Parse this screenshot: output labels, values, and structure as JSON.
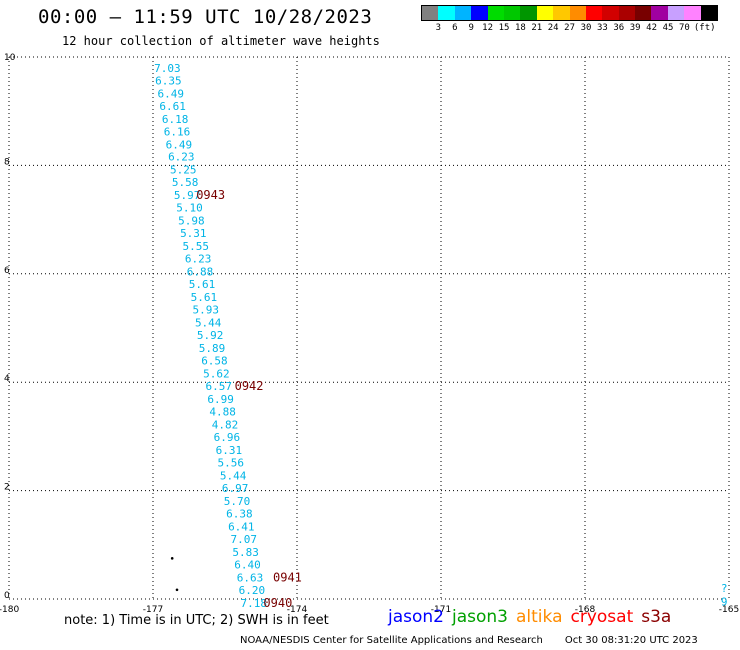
{
  "header": {
    "title": "00:00 – 11:59 UTC 10/28/2023",
    "subtitle": "12 hour collection of altimeter wave heights"
  },
  "legend": {
    "colors": [
      "#808080",
      "#00ffff",
      "#00b4ff",
      "#0000ff",
      "#00dc00",
      "#00c800",
      "#009600",
      "#ffff00",
      "#ffc800",
      "#ff8c00",
      "#ff0000",
      "#d20000",
      "#aa0000",
      "#780000",
      "#a000a0",
      "#c8a0ff",
      "#ff82ff",
      "#000000"
    ],
    "tick_labels": [
      "3",
      "6",
      "9",
      "12",
      "15",
      "18",
      "21",
      "24",
      "27",
      "30",
      "33",
      "36",
      "39",
      "42",
      "45",
      "70"
    ],
    "unit": "(ft)"
  },
  "map": {
    "lon_range": [
      -180,
      -165
    ],
    "lat_range": [
      0,
      10
    ],
    "x_tick_labels": [
      "-180",
      "-177",
      "-174",
      "-171",
      "-168",
      "-165"
    ],
    "y_tick_labels": [
      "0",
      "2",
      "4",
      "6",
      "8",
      "10"
    ],
    "track_color": "#00b4e6",
    "time_color": "#780000",
    "track": [
      {
        "lon": -176.7,
        "lat": 9.8,
        "swh": "7.03"
      },
      {
        "lon": -176.68,
        "lat": 9.57,
        "swh": "6.35"
      },
      {
        "lon": -176.63,
        "lat": 9.33,
        "swh": "6.49"
      },
      {
        "lon": -176.59,
        "lat": 9.1,
        "swh": "6.61"
      },
      {
        "lon": -176.54,
        "lat": 8.86,
        "swh": "6.18"
      },
      {
        "lon": -176.5,
        "lat": 8.63,
        "swh": "6.16"
      },
      {
        "lon": -176.46,
        "lat": 8.39,
        "swh": "6.49"
      },
      {
        "lon": -176.41,
        "lat": 8.16,
        "swh": "6.23"
      },
      {
        "lon": -176.37,
        "lat": 7.92,
        "swh": "5.25"
      },
      {
        "lon": -176.33,
        "lat": 7.69,
        "swh": "5.58"
      },
      {
        "lon": -176.29,
        "lat": 7.45,
        "swh": "5.97"
      },
      {
        "lon": -176.24,
        "lat": 7.22,
        "swh": "5.10"
      },
      {
        "lon": -176.2,
        "lat": 6.98,
        "swh": "5.98"
      },
      {
        "lon": -176.16,
        "lat": 6.75,
        "swh": "5.31"
      },
      {
        "lon": -176.11,
        "lat": 6.51,
        "swh": "5.55"
      },
      {
        "lon": -176.06,
        "lat": 6.28,
        "swh": "6.23"
      },
      {
        "lon": -176.02,
        "lat": 6.04,
        "swh": "6.88"
      },
      {
        "lon": -175.98,
        "lat": 5.81,
        "swh": "5.61"
      },
      {
        "lon": -175.94,
        "lat": 5.57,
        "swh": "5.61"
      },
      {
        "lon": -175.9,
        "lat": 5.34,
        "swh": "5.93"
      },
      {
        "lon": -175.85,
        "lat": 5.1,
        "swh": "5.44"
      },
      {
        "lon": -175.81,
        "lat": 4.87,
        "swh": "5.92"
      },
      {
        "lon": -175.77,
        "lat": 4.63,
        "swh": "5.89"
      },
      {
        "lon": -175.72,
        "lat": 4.4,
        "swh": "6.58"
      },
      {
        "lon": -175.68,
        "lat": 4.16,
        "swh": "5.62"
      },
      {
        "lon": -175.63,
        "lat": 3.93,
        "swh": "6.57"
      },
      {
        "lon": -175.59,
        "lat": 3.69,
        "swh": "6.99"
      },
      {
        "lon": -175.55,
        "lat": 3.46,
        "swh": "4.88"
      },
      {
        "lon": -175.5,
        "lat": 3.22,
        "swh": "4.82"
      },
      {
        "lon": -175.46,
        "lat": 2.99,
        "swh": "6.96"
      },
      {
        "lon": -175.42,
        "lat": 2.75,
        "swh": "6.31"
      },
      {
        "lon": -175.38,
        "lat": 2.52,
        "swh": "5.56"
      },
      {
        "lon": -175.33,
        "lat": 2.28,
        "swh": "5.44"
      },
      {
        "lon": -175.29,
        "lat": 2.05,
        "swh": "6.97"
      },
      {
        "lon": -175.25,
        "lat": 1.81,
        "swh": "5.70"
      },
      {
        "lon": -175.2,
        "lat": 1.58,
        "swh": "6.38"
      },
      {
        "lon": -175.16,
        "lat": 1.34,
        "swh": "6.41"
      },
      {
        "lon": -175.11,
        "lat": 1.11,
        "swh": "7.07"
      },
      {
        "lon": -175.07,
        "lat": 0.87,
        "swh": "5.83"
      },
      {
        "lon": -175.03,
        "lat": 0.64,
        "swh": "6.40"
      },
      {
        "lon": -174.98,
        "lat": 0.4,
        "swh": "6.63"
      },
      {
        "lon": -174.94,
        "lat": 0.17,
        "swh": "6.20"
      },
      {
        "lon": -174.9,
        "lat": -0.07,
        "swh": "7.18"
      }
    ],
    "time_labels": [
      {
        "lon": -176.1,
        "lat": 7.45,
        "text": "0943"
      },
      {
        "lon": -175.3,
        "lat": 3.93,
        "text": "0942"
      },
      {
        "lon": -174.5,
        "lat": 0.4,
        "text": "0941"
      },
      {
        "lon": -174.7,
        "lat": -0.07,
        "text": "0940"
      }
    ],
    "points": [
      {
        "lon": -176.6,
        "lat": 0.75
      },
      {
        "lon": -176.5,
        "lat": 0.17
      }
    ],
    "edge_labels": [
      {
        "lon": -165.1,
        "lat": 0.2,
        "text": "?"
      },
      {
        "lon": -165.1,
        "lat": -0.05,
        "text": "9"
      }
    ]
  },
  "footer": {
    "note": "note: 1) Time is in UTC; 2) SWH is in feet",
    "satellites": [
      {
        "name": "jason2",
        "color": "#0000ff"
      },
      {
        "name": "jason3",
        "color": "#00a000"
      },
      {
        "name": "altika",
        "color": "#ff8c00"
      },
      {
        "name": "cryosat",
        "color": "#ff0000"
      },
      {
        "name": "s3a",
        "color": "#8b0000"
      }
    ],
    "credit": "NOAA/NESDIS Center for Satellite Applications and Research",
    "timestamp": "Oct 30 08:31:20 UTC 2023"
  }
}
